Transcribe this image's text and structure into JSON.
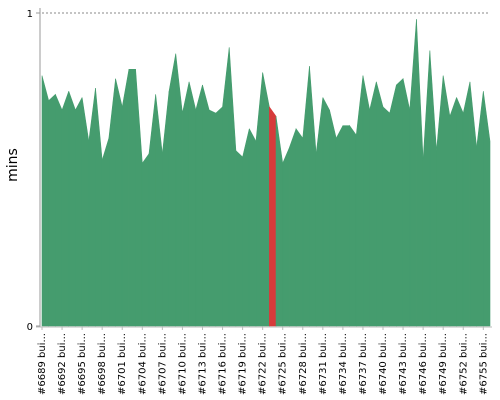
{
  "chart_data": {
    "type": "area",
    "ylabel": "mins",
    "ylim": [
      0,
      1
    ],
    "y_tick_labels": [
      "0",
      "1"
    ],
    "grid": "dashed line at top",
    "colors": {
      "success": "#459c6e",
      "failure": "#d63b3b",
      "axis": "#999999"
    },
    "x": [
      6689,
      6690,
      6691,
      6692,
      6693,
      6694,
      6695,
      6696,
      6697,
      6698,
      6699,
      6700,
      6701,
      6702,
      6703,
      6704,
      6705,
      6706,
      6707,
      6708,
      6709,
      6710,
      6711,
      6712,
      6713,
      6714,
      6715,
      6716,
      6717,
      6718,
      6719,
      6720,
      6721,
      6722,
      6723,
      6724,
      6725,
      6726,
      6727,
      6728,
      6729,
      6730,
      6731,
      6732,
      6733,
      6734,
      6735,
      6736,
      6737,
      6738,
      6739,
      6740,
      6741,
      6742,
      6743,
      6744,
      6745,
      6746,
      6747,
      6748,
      6749,
      6750,
      6751,
      6752,
      6753,
      6754,
      6755,
      6756
    ],
    "values": [
      0.8,
      0.72,
      0.74,
      0.69,
      0.75,
      0.69,
      0.73,
      0.59,
      0.76,
      0.53,
      0.6,
      0.79,
      0.7,
      0.82,
      0.82,
      0.52,
      0.55,
      0.74,
      0.55,
      0.75,
      0.87,
      0.68,
      0.78,
      0.69,
      0.77,
      0.69,
      0.68,
      0.7,
      0.89,
      0.56,
      0.54,
      0.63,
      0.59,
      0.81,
      0.7,
      0.67,
      0.52,
      0.57,
      0.63,
      0.6,
      0.83,
      0.55,
      0.73,
      0.69,
      0.6,
      0.64,
      0.64,
      0.61,
      0.8,
      0.69,
      0.78,
      0.7,
      0.68,
      0.77,
      0.79,
      0.69,
      0.98,
      0.53,
      0.88,
      0.56,
      0.8,
      0.67,
      0.73,
      0.68,
      0.78,
      0.57,
      0.75,
      0.59
    ],
    "failed_builds": [
      6724
    ],
    "x_tick_labels": [
      "#6689 bui...",
      "#6692 bui...",
      "#6695 bui...",
      "#6698 bui...",
      "#6701 bui...",
      "#6704 bui...",
      "#6707 bui...",
      "#6710 bui...",
      "#6713 bui...",
      "#6716 bui...",
      "#6719 bui...",
      "#6722 bui...",
      "#6725 bui...",
      "#6728 bui...",
      "#6731 bui...",
      "#6734 bui...",
      "#6737 bui...",
      "#6740 bui...",
      "#6743 bui...",
      "#6746 bui...",
      "#6749 bui...",
      "#6752 bui...",
      "#6755 bui..."
    ]
  }
}
